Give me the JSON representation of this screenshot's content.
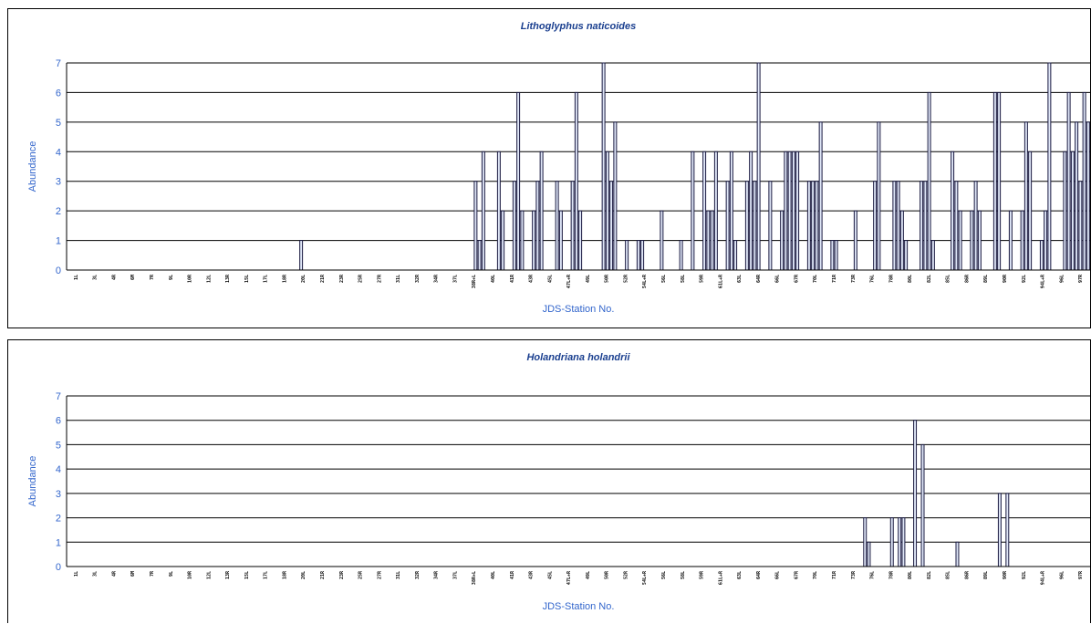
{
  "chart_data": [
    {
      "type": "bar",
      "title": "Lithoglyphus naticoides",
      "xlabel": "JDS-Station No.",
      "ylabel": "Abundance",
      "ylim": [
        0,
        7
      ],
      "yticks": [
        0,
        1,
        2,
        3,
        4,
        5,
        6,
        7
      ],
      "grid": true,
      "legend": "none",
      "bar_fill": "#dfe6f7",
      "bar_stroke": "#1a1a40",
      "x_tick_labels": [
        "1L",
        "3L",
        "4R",
        "6M",
        "7R",
        "9L",
        "10R",
        "12L",
        "13R",
        "15L",
        "17L",
        "18R",
        "20L",
        "21R",
        "23R",
        "25R",
        "27R",
        "31L",
        "32R",
        "34R",
        "37L",
        "38R+L",
        "40L",
        "41R",
        "43R",
        "45L",
        "47L+R",
        "49L",
        "50R",
        "52R",
        "54L+R",
        "56L",
        "58L",
        "59R",
        "61L+R",
        "63L",
        "64R",
        "66L",
        "67R",
        "70L",
        "71R",
        "73R",
        "76L",
        "78R",
        "80L",
        "82L",
        "85L",
        "86R",
        "89L",
        "90R",
        "92L",
        "94L+R",
        "96L",
        "97R"
      ],
      "values": [
        0,
        0,
        0,
        0,
        0,
        0,
        0,
        0,
        0,
        0,
        0,
        0,
        0,
        0,
        0,
        0,
        0,
        0,
        0,
        0,
        0,
        0,
        0,
        0,
        0,
        0,
        0,
        0,
        0,
        0,
        0,
        0,
        0,
        0,
        0,
        0,
        0,
        0,
        0,
        0,
        0,
        0,
        0,
        0,
        0,
        0,
        0,
        0,
        0,
        0,
        0,
        0,
        0,
        0,
        0,
        0,
        0,
        0,
        0,
        0,
        1,
        0,
        0,
        0,
        0,
        0,
        0,
        0,
        0,
        0,
        0,
        0,
        0,
        0,
        0,
        0,
        0,
        0,
        0,
        0,
        0,
        0,
        0,
        0,
        0,
        0,
        0,
        0,
        0,
        0,
        0,
        0,
        0,
        0,
        0,
        0,
        0,
        0,
        0,
        0,
        0,
        0,
        0,
        0,
        0,
        3,
        1,
        4,
        0,
        0,
        0,
        4,
        2,
        0,
        0,
        3,
        6,
        2,
        0,
        0,
        2,
        3,
        4,
        0,
        0,
        0,
        3,
        2,
        0,
        0,
        3,
        6,
        2,
        0,
        0,
        0,
        0,
        0,
        7,
        4,
        3,
        5,
        0,
        0,
        1,
        0,
        0,
        1,
        1,
        0,
        0,
        0,
        0,
        2,
        0,
        0,
        0,
        0,
        1,
        0,
        0,
        4,
        0,
        0,
        4,
        2,
        2,
        4,
        0,
        0,
        3,
        4,
        1,
        0,
        0,
        3,
        4,
        3,
        7,
        0,
        0,
        3,
        0,
        0,
        2,
        4,
        4,
        4,
        4,
        0,
        0,
        3,
        3,
        3,
        5,
        0,
        0,
        1,
        1,
        0,
        0,
        0,
        0,
        2,
        0,
        0,
        0,
        0,
        3,
        5,
        0,
        0,
        0,
        3,
        3,
        2,
        1,
        0,
        0,
        0,
        3,
        3,
        6,
        1,
        0,
        0,
        0,
        0,
        4,
        3,
        2,
        0,
        0,
        2,
        3,
        2,
        0,
        0,
        0,
        6,
        6,
        0,
        0,
        2,
        0,
        0,
        2,
        5,
        4,
        0,
        0,
        1,
        2,
        7,
        0,
        0,
        0,
        4,
        6,
        4,
        5,
        3,
        6,
        5
      ]
    },
    {
      "type": "bar",
      "title": "Holandriana holandrii",
      "xlabel": "JDS-Station No.",
      "ylabel": "Abundance",
      "ylim": [
        0,
        7
      ],
      "yticks": [
        0,
        1,
        2,
        3,
        4,
        5,
        6,
        7
      ],
      "grid": true,
      "legend": "none",
      "bar_fill": "#dfe6f7",
      "bar_stroke": "#1a1a40",
      "x_tick_labels": [
        "1L",
        "3L",
        "4R",
        "6M",
        "7R",
        "9L",
        "10R",
        "12L",
        "13R",
        "15L",
        "17L",
        "18R",
        "20L",
        "21R",
        "23R",
        "25R",
        "27R",
        "31L",
        "32R",
        "34R",
        "37L",
        "38R+L",
        "40L",
        "41R",
        "43R",
        "45L",
        "47L+R",
        "49L",
        "50R",
        "52R",
        "54L+R",
        "56L",
        "58L",
        "59R",
        "61L+R",
        "63L",
        "64R",
        "66L",
        "67R",
        "70L",
        "71R",
        "73R",
        "76L",
        "78R",
        "80L",
        "82L",
        "85L",
        "86R",
        "89L",
        "90R",
        "92L",
        "94L+R",
        "96L",
        "97R"
      ],
      "values": [
        0,
        0,
        0,
        0,
        0,
        0,
        0,
        0,
        0,
        0,
        0,
        0,
        0,
        0,
        0,
        0,
        0,
        0,
        0,
        0,
        0,
        0,
        0,
        0,
        0,
        0,
        0,
        0,
        0,
        0,
        0,
        0,
        0,
        0,
        0,
        0,
        0,
        0,
        0,
        0,
        0,
        0,
        0,
        0,
        0,
        0,
        0,
        0,
        0,
        0,
        0,
        0,
        0,
        0,
        0,
        0,
        0,
        0,
        0,
        0,
        0,
        0,
        0,
        0,
        0,
        0,
        0,
        0,
        0,
        0,
        0,
        0,
        0,
        0,
        0,
        0,
        0,
        0,
        0,
        0,
        0,
        0,
        0,
        0,
        0,
        0,
        0,
        0,
        0,
        0,
        0,
        0,
        0,
        0,
        0,
        0,
        0,
        0,
        0,
        0,
        0,
        0,
        0,
        0,
        0,
        0,
        0,
        0,
        0,
        0,
        0,
        0,
        0,
        0,
        0,
        0,
        0,
        0,
        0,
        0,
        0,
        0,
        0,
        0,
        0,
        0,
        0,
        0,
        0,
        0,
        0,
        0,
        0,
        0,
        0,
        0,
        0,
        0,
        0,
        0,
        0,
        0,
        0,
        0,
        0,
        0,
        0,
        0,
        0,
        0,
        0,
        0,
        0,
        0,
        0,
        0,
        0,
        0,
        0,
        0,
        0,
        0,
        0,
        0,
        0,
        0,
        0,
        0,
        0,
        0,
        0,
        0,
        0,
        0,
        0,
        0,
        0,
        0,
        0,
        0,
        0,
        0,
        0,
        0,
        0,
        0,
        0,
        0,
        0,
        0,
        0,
        0,
        0,
        0,
        0,
        0,
        0,
        0,
        0,
        0,
        0,
        0,
        0,
        0,
        0,
        0,
        0,
        2,
        1,
        0,
        0,
        0,
        0,
        0,
        2,
        0,
        2,
        2,
        0,
        0,
        6,
        0,
        5,
        0,
        0,
        0,
        0,
        0,
        0,
        0,
        0,
        1,
        0,
        0,
        0,
        0,
        0,
        0,
        0,
        0,
        0,
        0,
        3,
        0,
        3,
        0,
        0,
        0,
        0,
        0,
        0,
        0,
        0,
        0,
        0,
        0,
        0,
        0,
        0,
        0,
        0,
        0,
        0,
        0,
        0,
        0
      ]
    }
  ]
}
